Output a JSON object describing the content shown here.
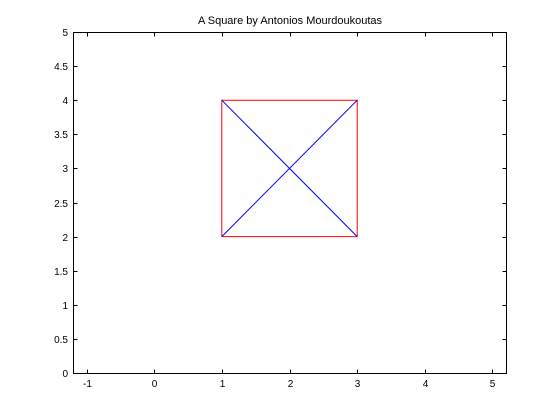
{
  "chart_data": {
    "type": "line",
    "title": "A Square by Antonios Mourdoukoutas",
    "xlabel": "",
    "ylabel": "",
    "xlim": [
      -1.2,
      5.2
    ],
    "ylim": [
      0,
      5
    ],
    "xticks": [
      -1,
      0,
      1,
      2,
      3,
      4,
      5
    ],
    "yticks": [
      0,
      0.5,
      1,
      1.5,
      2,
      2.5,
      3,
      3.5,
      4,
      4.5,
      5
    ],
    "xtick_labels": [
      "-1",
      "0",
      "1",
      "2",
      "3",
      "4",
      "5"
    ],
    "ytick_labels": [
      "0",
      "0.5",
      "1",
      "1.5",
      "2",
      "2.5",
      "3",
      "3.5",
      "4",
      "4.5",
      "5"
    ],
    "grid": false,
    "series": [
      {
        "color": "#ff0000",
        "x": [
          1,
          3,
          3,
          1,
          1
        ],
        "y": [
          2,
          2,
          4,
          4,
          2
        ]
      },
      {
        "color": "#0000ff",
        "x": [
          1,
          3
        ],
        "y": [
          2,
          4
        ]
      },
      {
        "color": "#0000ff",
        "x": [
          1,
          3
        ],
        "y": [
          4,
          2
        ]
      }
    ]
  }
}
